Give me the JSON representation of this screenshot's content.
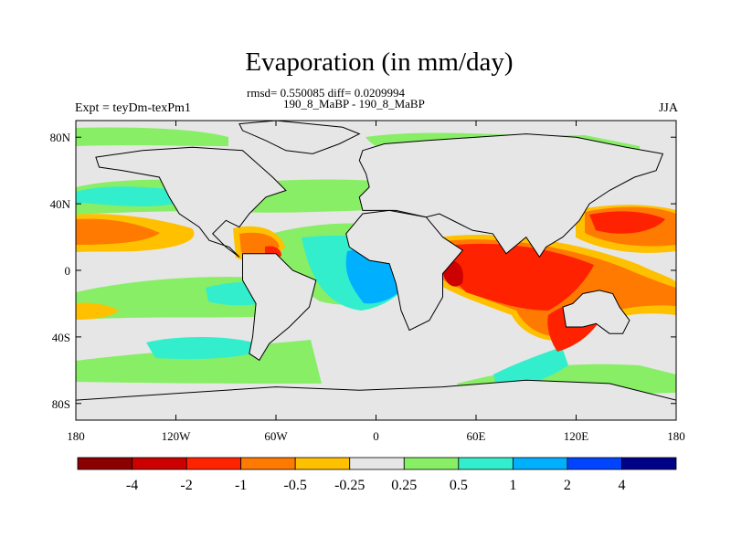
{
  "title": "Evaporation (in mm/day)",
  "subtitle": "rmsd= 0.550085 diff= 0.0209994",
  "case_label": "190_8_MaBP - 190_8_MaBP",
  "left_label": "Expt = teyDm-texPm1",
  "right_label": "JJA",
  "map": {
    "projection": "cylindrical-equidistant",
    "lon_range": [
      -180,
      180
    ],
    "lat_range": [
      -90,
      90
    ],
    "x_ticks": [
      {
        "value": -180,
        "label": "180"
      },
      {
        "value": -120,
        "label": "120W"
      },
      {
        "value": -60,
        "label": "60W"
      },
      {
        "value": 0,
        "label": "0"
      },
      {
        "value": 60,
        "label": "60E"
      },
      {
        "value": 120,
        "label": "120E"
      },
      {
        "value": 180,
        "label": "180"
      }
    ],
    "y_ticks": [
      {
        "value": 80,
        "label": "80N"
      },
      {
        "value": 40,
        "label": "40N"
      },
      {
        "value": 0,
        "label": "0"
      },
      {
        "value": -40,
        "label": "40S"
      },
      {
        "value": -80,
        "label": "80S"
      }
    ],
    "background_color": "#e6e6e6",
    "coast_color": "#000000",
    "land_outlines": [
      [
        [
          -82,
          88
        ],
        [
          -60,
          90
        ],
        [
          -20,
          86
        ],
        [
          -10,
          82
        ],
        [
          -22,
          76
        ],
        [
          -38,
          70
        ],
        [
          -54,
          72
        ],
        [
          -66,
          78
        ],
        [
          -80,
          84
        ]
      ],
      [
        [
          -8,
          72
        ],
        [
          5,
          76
        ],
        [
          30,
          78
        ],
        [
          60,
          80
        ],
        [
          90,
          82
        ],
        [
          120,
          80
        ],
        [
          150,
          74
        ],
        [
          172,
          70
        ],
        [
          168,
          60
        ],
        [
          155,
          56
        ],
        [
          140,
          48
        ],
        [
          128,
          40
        ],
        [
          122,
          30
        ],
        [
          112,
          20
        ],
        [
          102,
          14
        ],
        [
          98,
          8
        ],
        [
          90,
          20
        ],
        [
          78,
          10
        ],
        [
          70,
          22
        ],
        [
          58,
          24
        ],
        [
          50,
          28
        ],
        [
          38,
          34
        ],
        [
          30,
          32
        ],
        [
          12,
          36
        ],
        [
          -8,
          36
        ],
        [
          -10,
          44
        ],
        [
          -4,
          50
        ],
        [
          -6,
          58
        ],
        [
          -10,
          66
        ]
      ],
      [
        [
          8,
          36
        ],
        [
          30,
          32
        ],
        [
          40,
          20
        ],
        [
          52,
          12
        ],
        [
          40,
          -2
        ],
        [
          40,
          -16
        ],
        [
          32,
          -30
        ],
        [
          20,
          -36
        ],
        [
          15,
          -24
        ],
        [
          12,
          -8
        ],
        [
          8,
          4
        ],
        [
          -4,
          6
        ],
        [
          -16,
          14
        ],
        [
          -18,
          22
        ],
        [
          -8,
          34
        ]
      ],
      [
        [
          -168,
          68
        ],
        [
          -140,
          72
        ],
        [
          -110,
          74
        ],
        [
          -80,
          72
        ],
        [
          -62,
          56
        ],
        [
          -54,
          48
        ],
        [
          -66,
          44
        ],
        [
          -76,
          34
        ],
        [
          -82,
          26
        ],
        [
          -90,
          30
        ],
        [
          -98,
          22
        ],
        [
          -90,
          14
        ],
        [
          -82,
          8
        ],
        [
          -88,
          14
        ],
        [
          -100,
          18
        ],
        [
          -106,
          26
        ],
        [
          -118,
          34
        ],
        [
          -124,
          44
        ],
        [
          -130,
          56
        ],
        [
          -152,
          60
        ],
        [
          -166,
          62
        ]
      ],
      [
        [
          -80,
          10
        ],
        [
          -60,
          10
        ],
        [
          -50,
          0
        ],
        [
          -36,
          -6
        ],
        [
          -40,
          -22
        ],
        [
          -52,
          -34
        ],
        [
          -64,
          -44
        ],
        [
          -70,
          -54
        ],
        [
          -76,
          -50
        ],
        [
          -74,
          -40
        ],
        [
          -72,
          -20
        ],
        [
          -80,
          -6
        ]
      ],
      [
        [
          112,
          -22
        ],
        [
          118,
          -20
        ],
        [
          124,
          -14
        ],
        [
          134,
          -12
        ],
        [
          142,
          -14
        ],
        [
          146,
          -22
        ],
        [
          152,
          -30
        ],
        [
          148,
          -38
        ],
        [
          140,
          -38
        ],
        [
          132,
          -32
        ],
        [
          124,
          -34
        ],
        [
          114,
          -34
        ]
      ],
      [
        [
          -180,
          -78
        ],
        [
          -120,
          -74
        ],
        [
          -60,
          -70
        ],
        [
          -10,
          -72
        ],
        [
          40,
          -70
        ],
        [
          90,
          -66
        ],
        [
          140,
          -68
        ],
        [
          180,
          -78
        ],
        [
          180,
          -90
        ],
        [
          -180,
          -90
        ]
      ]
    ]
  },
  "colorbar": {
    "levels": [
      "-4",
      "-2",
      "-1",
      "-0.5",
      "-0.25",
      "0.25",
      "0.5",
      "1",
      "2",
      "4"
    ],
    "colors": [
      "#8b0000",
      "#cc0000",
      "#ff2200",
      "#ff7a00",
      "#ffc000",
      "#e6e6e6",
      "#88ee66",
      "#33eecc",
      "#00b0ff",
      "#0044ff",
      "#000088"
    ]
  }
}
